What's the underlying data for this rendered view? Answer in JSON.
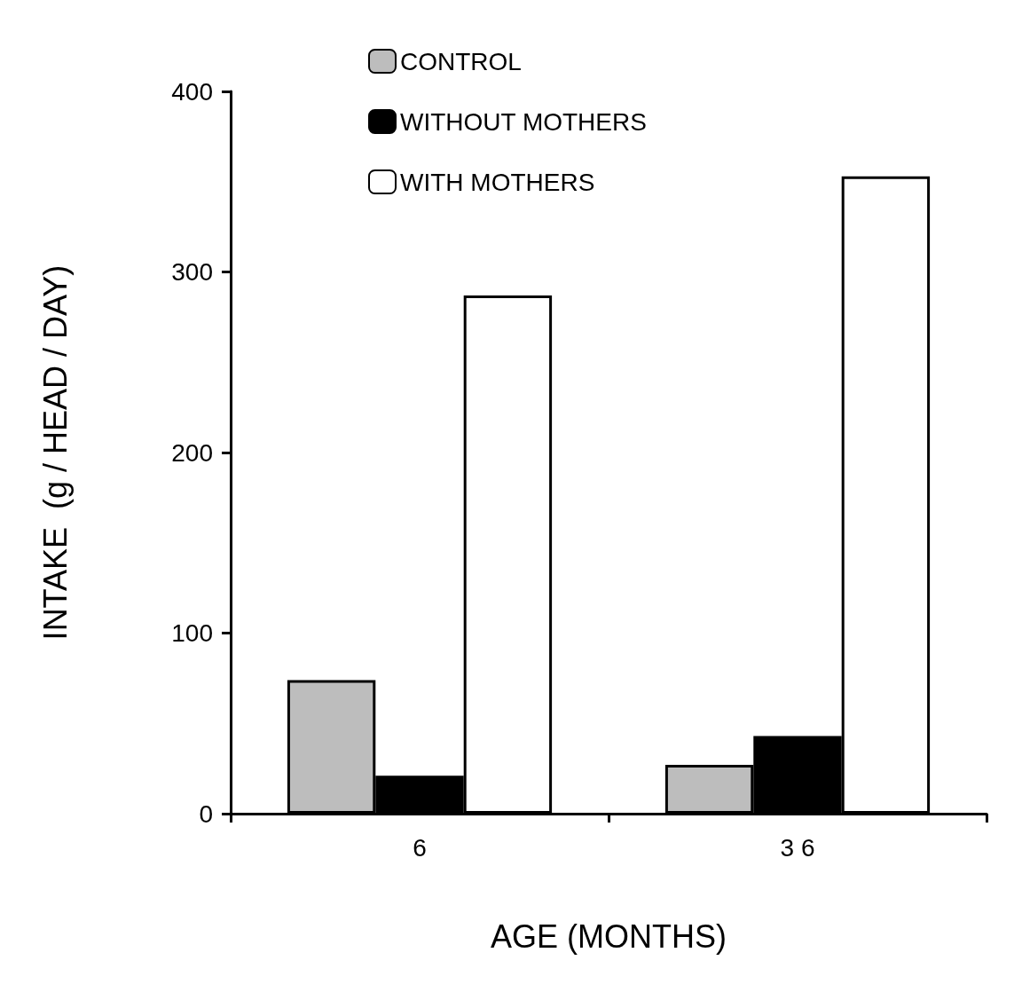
{
  "chart_data": {
    "type": "bar",
    "xlabel": "AGE (MONTHS)",
    "ylabel": "INTAKE  (g / HEAD / DAY)",
    "categories": [
      "6",
      "3 6"
    ],
    "series": [
      {
        "name": "CONTROL",
        "color": "#bdbdbd",
        "values": [
          74,
          27
        ]
      },
      {
        "name": "WITHOUT MOTHERS",
        "color": "#000000",
        "values": [
          21,
          43
        ]
      },
      {
        "name": "WITH MOTHERS",
        "color": "#ffffff",
        "values": [
          287,
          353
        ]
      }
    ],
    "ylim": [
      0,
      400
    ],
    "yticks": [
      0,
      100,
      200,
      300,
      400
    ],
    "grid": false,
    "legend": "top"
  }
}
